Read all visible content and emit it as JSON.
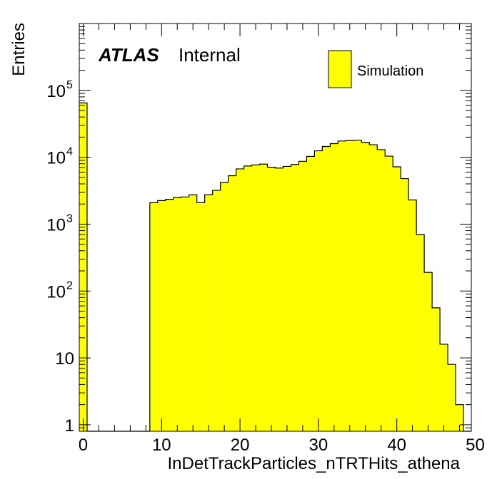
{
  "chart_data": {
    "type": "bar",
    "histogram": true,
    "title": "",
    "xlabel": "InDetTrackParticles_nTRTHits_athena",
    "ylabel": "Entries",
    "xlim": [
      -0.5,
      49.5
    ],
    "ylim": [
      0.8,
      1000000
    ],
    "y_log_scale": true,
    "bin_width": 1,
    "x": [
      0,
      1,
      2,
      3,
      4,
      5,
      6,
      7,
      8,
      9,
      10,
      11,
      12,
      13,
      14,
      15,
      16,
      17,
      18,
      19,
      20,
      21,
      22,
      23,
      24,
      25,
      26,
      27,
      28,
      29,
      30,
      31,
      32,
      33,
      34,
      35,
      36,
      37,
      38,
      39,
      40,
      41,
      42,
      43,
      44,
      45,
      46,
      47,
      48,
      49
    ],
    "values": [
      65000,
      0,
      0,
      0,
      0,
      0,
      0,
      0,
      0,
      2100,
      2250,
      2350,
      2500,
      2550,
      2750,
      2100,
      2750,
      3200,
      4200,
      5300,
      6700,
      7400,
      7700,
      7900,
      7100,
      6900,
      7300,
      7800,
      8700,
      10300,
      12500,
      14500,
      16000,
      17500,
      17800,
      18000,
      16700,
      15400,
      13000,
      10400,
      7200,
      4800,
      2300,
      700,
      190,
      56,
      16,
      8,
      2,
      0.8
    ],
    "series": [
      {
        "name": "Simulation",
        "color": "#ffff00"
      }
    ],
    "x_ticks": [
      "0",
      "10",
      "20",
      "30",
      "40",
      "50"
    ],
    "y_ticks": [
      "1",
      "10",
      "10",
      "10",
      "10",
      "10"
    ],
    "y_tick_exponents": [
      "",
      "",
      "2",
      "3",
      "4",
      "5"
    ],
    "legend_position": "top-right",
    "grid": false,
    "fill_color": "#ffff00",
    "line_color": "#000000"
  },
  "annotation": {
    "atlas": "ATLAS",
    "label": "Internal"
  }
}
